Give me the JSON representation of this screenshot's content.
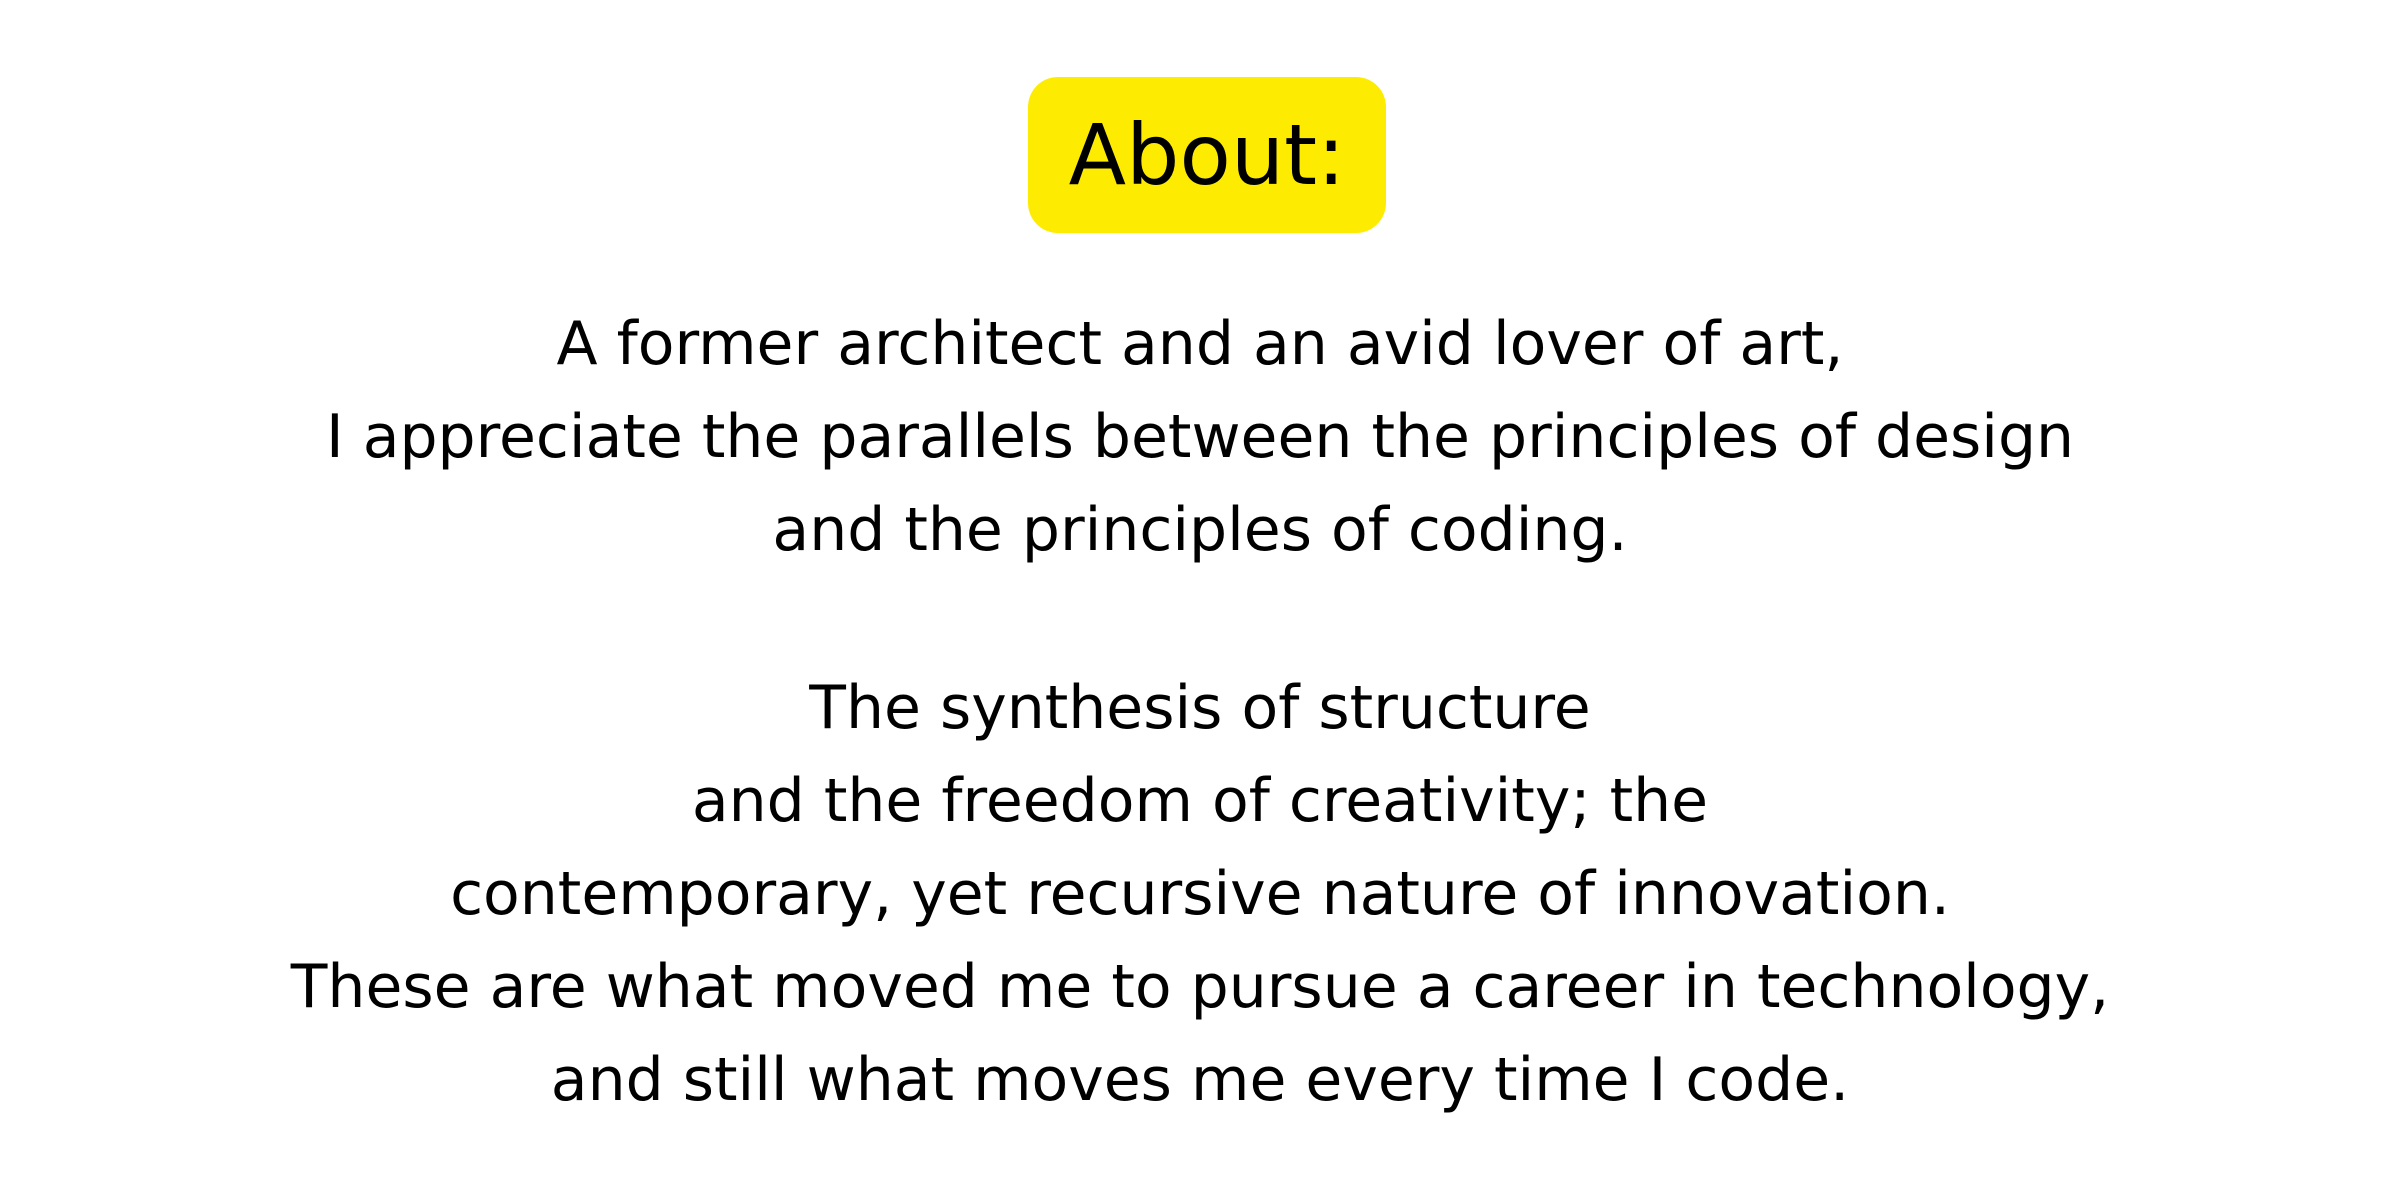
{
  "title": "About:",
  "paragraph_1": [
    "A former architect and an avid lover of art,",
    "I appreciate the parallels between the principles of design",
    "and the principles of coding."
  ],
  "paragraph_2": [
    "The synthesis of structure",
    "and the freedom of creativity; the",
    "contemporary, yet recursive nature of innovation.",
    "These are what moved me to pursue a career in technology,",
    "and still what moves me every time I code."
  ],
  "colors": {
    "title_highlight": "#fdec02",
    "text": "#000000",
    "background": "#ffffff"
  }
}
